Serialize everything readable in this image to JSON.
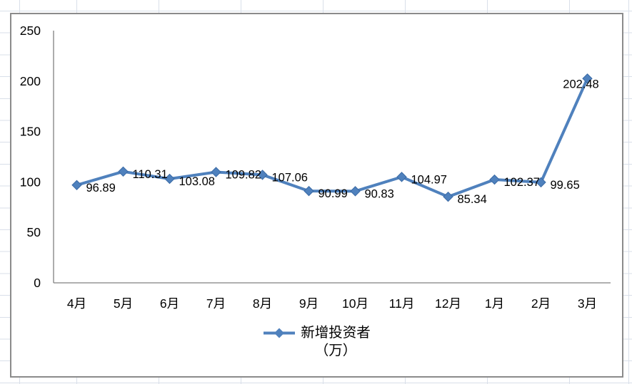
{
  "sheet": {
    "gridline_color": "#d9dfe9"
  },
  "chart": {
    "border_color": "#8b8b8b",
    "background": "#ffffff",
    "axis_color": "#808080"
  },
  "legend": {
    "label_line1": "新增投资者",
    "label_line2": "（万）"
  },
  "chart_data": {
    "type": "line",
    "title": "",
    "xlabel": "",
    "ylabel": "",
    "categories": [
      "4月",
      "5月",
      "6月",
      "7月",
      "8月",
      "9月",
      "10月",
      "11月",
      "12月",
      "1月",
      "2月",
      "3月"
    ],
    "series": [
      {
        "name": "新增投资者（万）",
        "values": [
          96.89,
          110.31,
          103.08,
          109.82,
          107.06,
          90.99,
          90.83,
          104.97,
          85.34,
          102.37,
          99.65,
          202.48
        ],
        "color": "#4F81BD",
        "marker": "diamond",
        "marker_edge_color": "#3a6aa5"
      }
    ],
    "ylim": [
      0,
      250
    ],
    "yticks": [
      0,
      50,
      100,
      150,
      200,
      250
    ],
    "data_labels": true,
    "grid": false,
    "legend_position": "bottom"
  }
}
